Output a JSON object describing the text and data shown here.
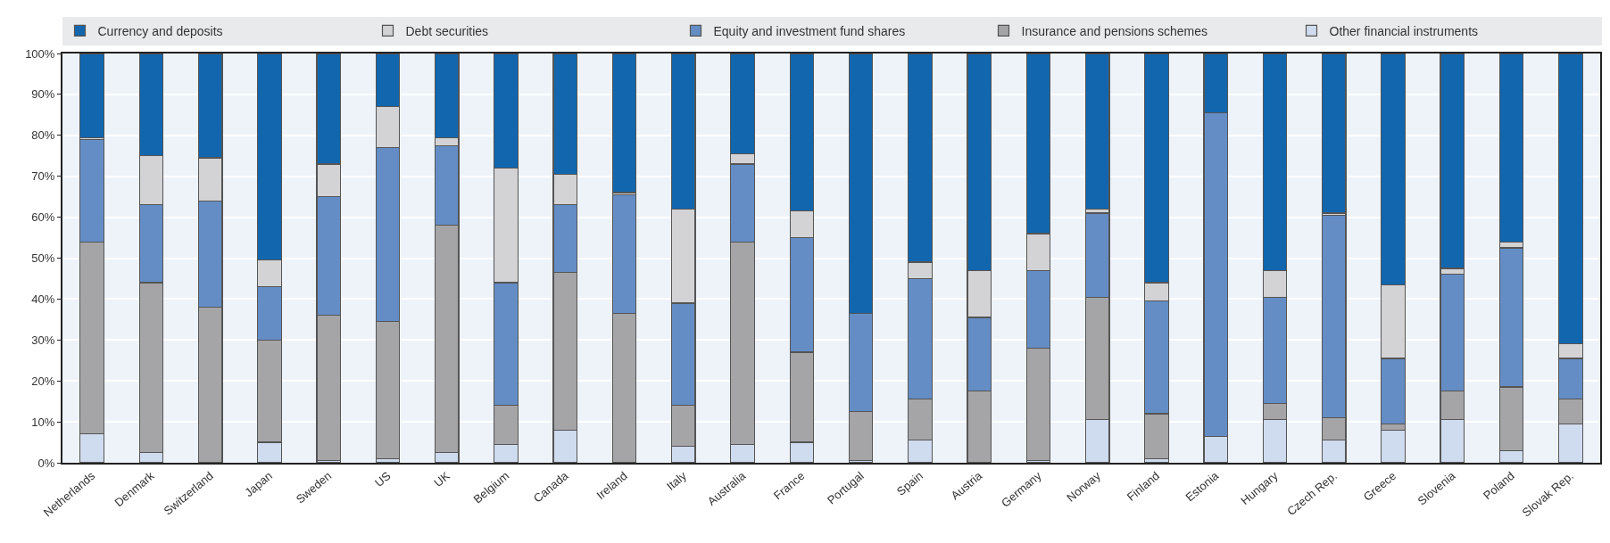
{
  "chart_data": {
    "type": "bar",
    "stacked": true,
    "categories": [
      "Netherlands",
      "Denmark",
      "Switzerland",
      "Japan",
      "Sweden",
      "US",
      "UK",
      "Belgium",
      "Canada",
      "Ireland",
      "Italy",
      "Australia",
      "France",
      "Portugal",
      "Spain",
      "Austria",
      "Germany",
      "Norway",
      "Finland",
      "Estonia",
      "Hungary",
      "Czech Rep.",
      "Greece",
      "Slovenia",
      "Poland",
      "Slovak Rep."
    ],
    "series": [
      {
        "name": "Other financial instruments",
        "color": "#cfdbee",
        "values": [
          7,
          2.5,
          0,
          5,
          0.5,
          1,
          2.5,
          4.5,
          8,
          0,
          4,
          4.5,
          5,
          0.5,
          5.5,
          0,
          0.5,
          10.5,
          1,
          6.5,
          10.5,
          5.5,
          8,
          10.5,
          3,
          9.5
        ]
      },
      {
        "name": "Insurance and pensions schemes",
        "color": "#a5a5a8",
        "values": [
          47,
          41.5,
          38,
          25,
          35.5,
          33.5,
          55.5,
          9.5,
          38.5,
          36.5,
          10,
          49.5,
          22,
          12,
          10,
          17.5,
          27.5,
          30,
          11,
          0,
          4,
          5.5,
          1.5,
          7,
          15.5,
          6
        ]
      },
      {
        "name": "Equity and investment fund shares",
        "color": "#648dc5",
        "values": [
          25,
          19,
          26,
          13,
          29,
          42.5,
          19.5,
          30,
          16.5,
          29,
          25,
          19,
          28,
          24,
          29.5,
          18,
          19,
          20.5,
          27.5,
          79,
          26,
          49.5,
          16,
          28.5,
          34,
          10
        ]
      },
      {
        "name": "Debt securities",
        "color": "#d3d3d5",
        "values": [
          0.5,
          12,
          10.5,
          6.5,
          8,
          10,
          2,
          28,
          7.5,
          0.5,
          23,
          2.5,
          6.5,
          0,
          4,
          11.5,
          9,
          1,
          4.5,
          0,
          6.5,
          0.5,
          18,
          1.5,
          1.5,
          3.5
        ]
      },
      {
        "name": "Currency and deposits",
        "color": "#1166ae",
        "values": [
          20.5,
          25,
          25.5,
          50.5,
          27,
          13,
          20.5,
          28,
          29.5,
          34,
          38,
          24.5,
          38.5,
          63.5,
          51,
          53,
          44,
          38,
          56,
          14.5,
          53,
          39,
          56.5,
          52.5,
          46,
          71
        ]
      }
    ],
    "ylim": [
      0,
      100
    ],
    "yticks": [
      {
        "value": 0,
        "label": "0%"
      },
      {
        "value": 10,
        "label": "10%"
      },
      {
        "value": 20,
        "label": "20%"
      },
      {
        "value": 30,
        "label": "30%"
      },
      {
        "value": 40,
        "label": "40%"
      },
      {
        "value": 50,
        "label": "50%"
      },
      {
        "value": 60,
        "label": "60%"
      },
      {
        "value": 70,
        "label": "70%"
      },
      {
        "value": 80,
        "label": "80%"
      },
      {
        "value": 90,
        "label": "90%"
      },
      {
        "value": 100,
        "label": "100%"
      }
    ],
    "grid": "y",
    "legend": "top"
  }
}
